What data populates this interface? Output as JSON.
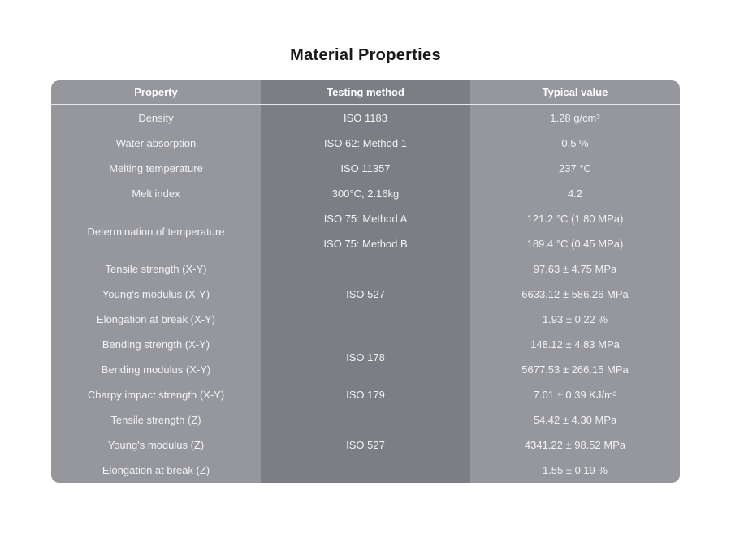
{
  "title": "Material Properties",
  "table": {
    "columns": {
      "property": "Property",
      "method": "Testing method",
      "value": "Typical value"
    },
    "rows": [
      {
        "properties": [
          "Density"
        ],
        "methods": [
          "ISO 1183"
        ],
        "values": [
          "1.28 g/cm³"
        ]
      },
      {
        "properties": [
          "Water absorption"
        ],
        "methods": [
          "ISO 62: Method 1"
        ],
        "values": [
          "0.5 %"
        ]
      },
      {
        "properties": [
          "Melting temperature"
        ],
        "methods": [
          "ISO 11357"
        ],
        "values": [
          "237 °C"
        ]
      },
      {
        "properties": [
          "Melt index"
        ],
        "methods": [
          "300°C, 2.16kg"
        ],
        "values": [
          "4.2"
        ]
      },
      {
        "properties": [
          "Determination of temperature"
        ],
        "methods": [
          "ISO 75: Method A",
          "ISO 75: Method B"
        ],
        "values": [
          "121.2 °C (1.80 MPa)",
          "189.4 °C (0.45 MPa)"
        ]
      },
      {
        "properties": [
          "Tensile strength (X-Y)",
          "Young's modulus (X-Y)",
          "Elongation at break (X-Y)"
        ],
        "methods": [
          "ISO 527"
        ],
        "values": [
          "97.63 ± 4.75 MPa",
          "6633.12 ± 586.26 MPa",
          "1.93 ± 0.22 %"
        ]
      },
      {
        "properties": [
          "Bending strength (X-Y)",
          "Bending modulus (X-Y)"
        ],
        "methods": [
          "ISO 178"
        ],
        "values": [
          "148.12 ± 4.83 MPa",
          "5677.53 ± 266.15 MPa"
        ]
      },
      {
        "properties": [
          "Charpy impact strength (X-Y)"
        ],
        "methods": [
          "ISO 179"
        ],
        "values": [
          "7.01 ± 0.39 KJ/m²"
        ]
      },
      {
        "properties": [
          "Tensile strength (Z)",
          "Young's modulus (Z)",
          "Elongation at break (Z)"
        ],
        "methods": [
          "ISO 527"
        ],
        "values": [
          "54.42 ± 4.30 MPa",
          "4341.22 ± 98.52 MPa",
          "1.55 ± 0.19 %"
        ]
      }
    ]
  },
  "colors": {
    "outer_column_bg": "#95979C",
    "middle_column_bg": "#7B7E83",
    "row_divider": "#E8E7EC",
    "header_text": "#FFFFFF",
    "cell_text": "#F3F3F5",
    "title_text": "#19191B",
    "page_bg": "#FFFFFF"
  }
}
